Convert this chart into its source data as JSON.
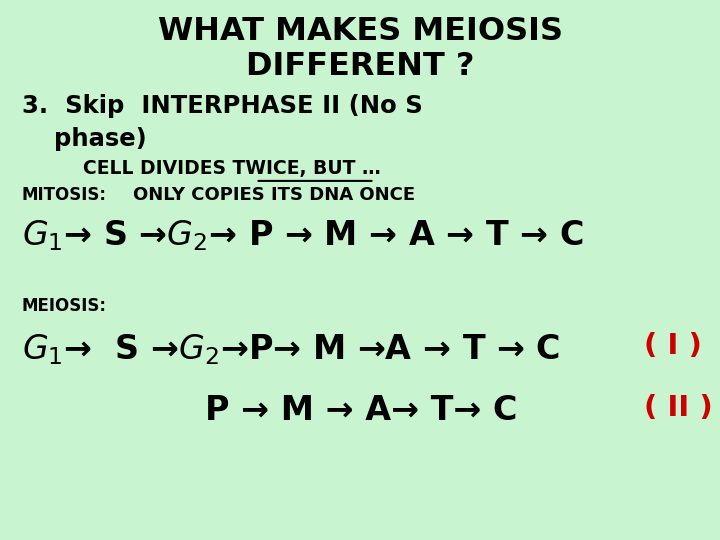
{
  "bg_color": "#c8f5d0",
  "black": "#000000",
  "red": "#cc0000",
  "title1": "WHAT MAKES MEIOSIS",
  "title2": "DIFFERENT ?",
  "point3a": "3.  Skip  INTERPHASE II (No S",
  "point3b": "phase)",
  "cell_divides_pre": "CELL DIVIDES ",
  "twice": "TWICE",
  "cell_divides_post": ", BUT …",
  "mitosis_label": "MITOSIS:",
  "only_copies": "ONLY COPIES ITS DNA ONCE",
  "meiosis_label": "MEIOSIS:",
  "roman_I": "( I )",
  "roman_II": "( II )"
}
